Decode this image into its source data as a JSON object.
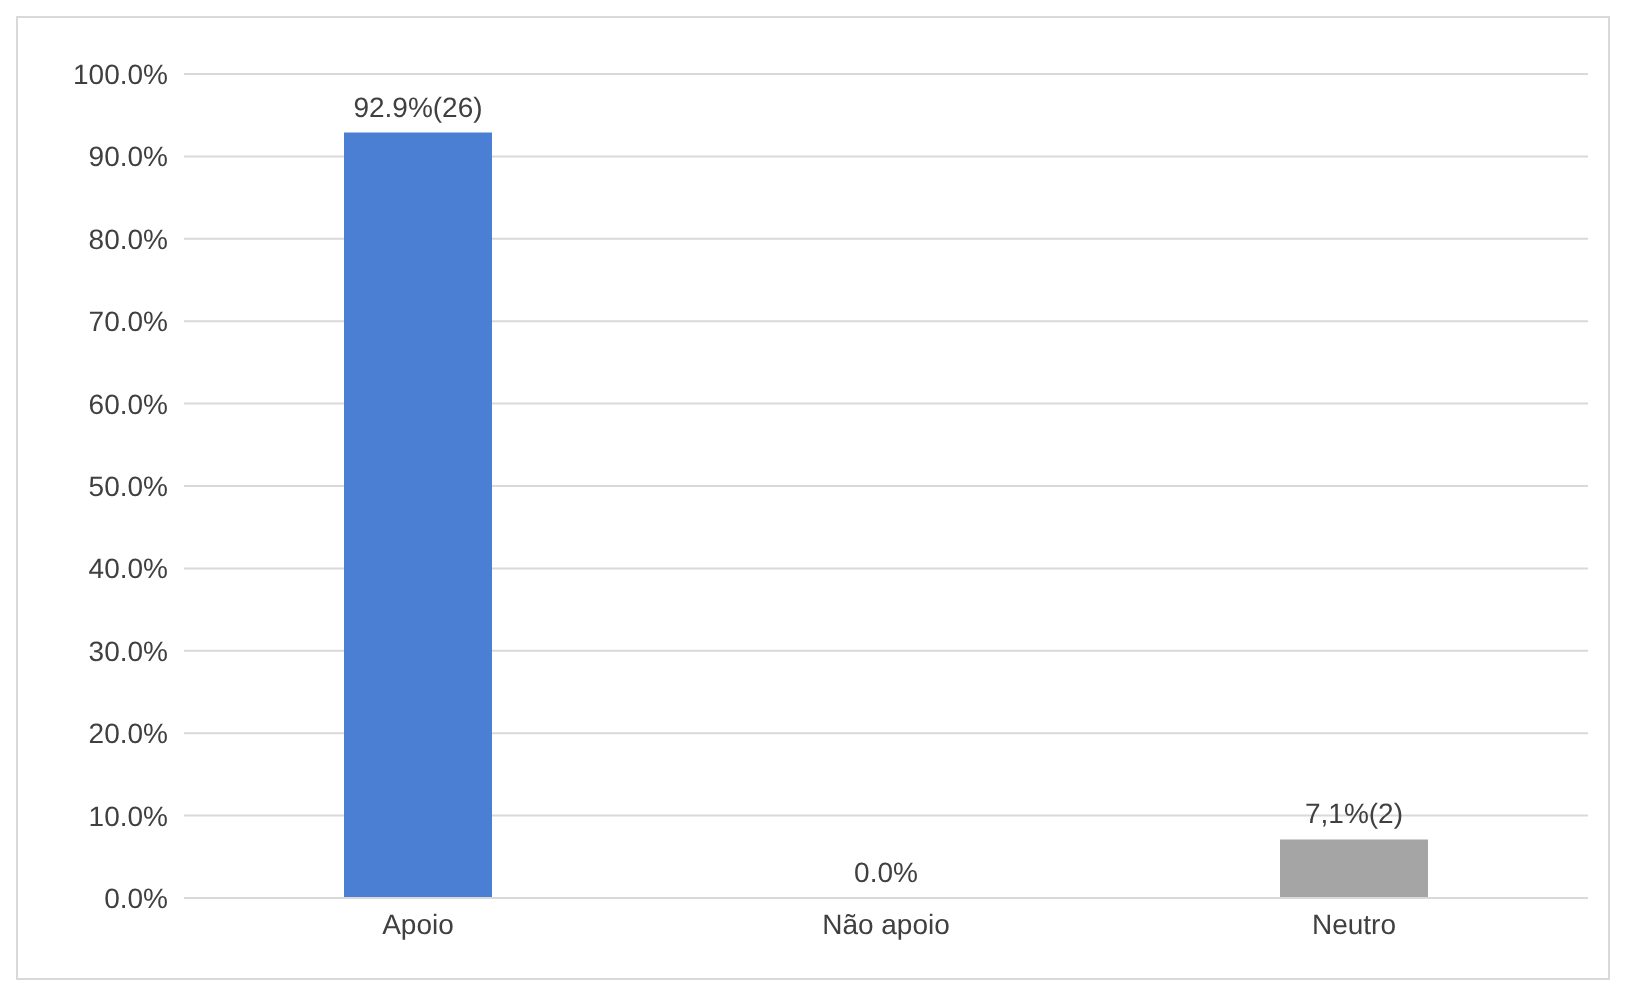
{
  "chart_data": {
    "type": "bar",
    "categories": [
      "Apoio",
      "Não apoio",
      "Neutro"
    ],
    "values": [
      92.9,
      0,
      7.1
    ],
    "colors": [
      "#4a7fd4",
      "#ed7d31",
      "#a5a5a5"
    ],
    "value_labels": [
      "92.9%(26)",
      "0.0%",
      "7,1%(2)"
    ],
    "ylim": [
      0,
      100
    ],
    "yticks": [
      {
        "value": 0,
        "label": "0.0%"
      },
      {
        "value": 10,
        "label": "10.0%"
      },
      {
        "value": 20,
        "label": "20.0%"
      },
      {
        "value": 30,
        "label": "30.0%"
      },
      {
        "value": 40,
        "label": "40.0%"
      },
      {
        "value": 50,
        "label": "50.0%"
      },
      {
        "value": 60,
        "label": "60.0%"
      },
      {
        "value": 70,
        "label": "70.0%"
      },
      {
        "value": 80,
        "label": "80.0%"
      },
      {
        "value": 90,
        "label": "90.0%"
      },
      {
        "value": 100,
        "label": "100.0%"
      }
    ],
    "grid": "y"
  }
}
